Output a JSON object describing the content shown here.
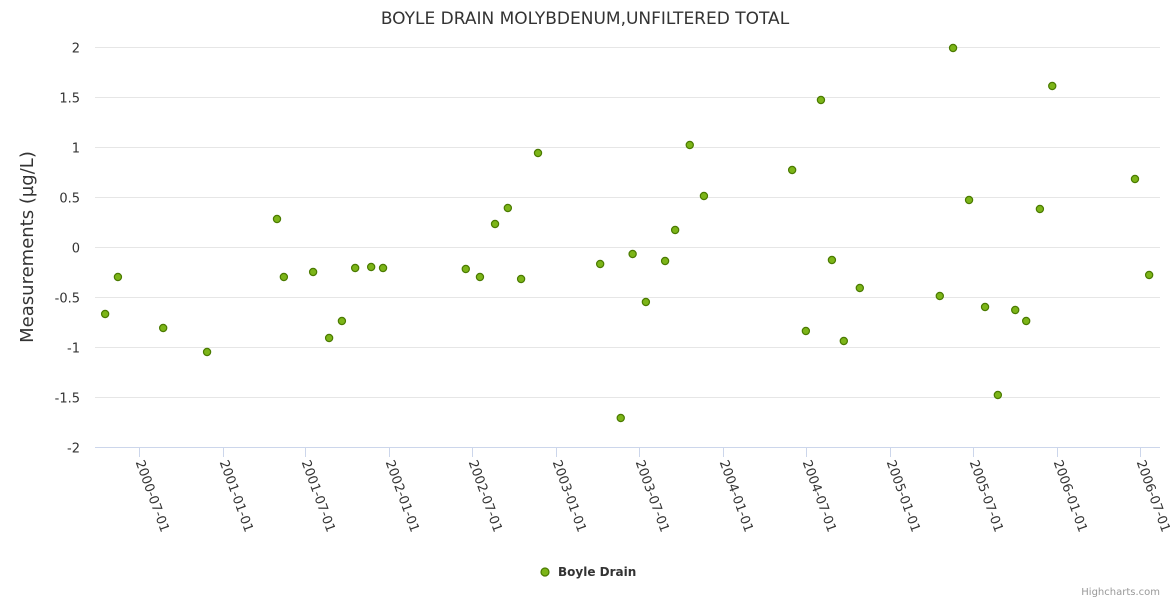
{
  "chart_data": {
    "type": "scatter",
    "title": "BOYLE DRAIN MOLYBDENUM,UNFILTERED TOTAL",
    "xlabel": "",
    "ylabel": "Measurements (µg/L)",
    "ylim": [
      -2,
      2
    ],
    "yticks": [
      "2",
      "1.5",
      "1",
      "0.5",
      "0",
      "-0.5",
      "-1",
      "-1.5",
      "-2"
    ],
    "ytick_values": [
      2,
      1.5,
      1,
      0.5,
      0,
      -0.5,
      -1,
      -1.5,
      -2
    ],
    "xticks": [
      "2000-07-01",
      "2001-01-01",
      "2001-07-01",
      "2002-01-01",
      "2002-07-01",
      "2003-01-01",
      "2003-07-01",
      "2004-01-01",
      "2004-07-01",
      "2005-01-01",
      "2005-07-01",
      "2006-01-01",
      "2006-07-01"
    ],
    "xlim": [
      "2000-03-26",
      "2006-08-15"
    ],
    "grid": true,
    "legend_position": "bottom-center",
    "series": [
      {
        "name": "Boyle Drain",
        "color": "#7cb518",
        "points": [
          [
            "2000-04-19",
            -0.67
          ],
          [
            "2000-05-17",
            -0.3
          ],
          [
            "2000-08-24",
            -0.81
          ],
          [
            "2000-11-28",
            -1.05
          ],
          [
            "2001-04-30",
            0.28
          ],
          [
            "2001-05-15",
            -0.3
          ],
          [
            "2001-07-18",
            -0.25
          ],
          [
            "2001-08-22",
            -0.91
          ],
          [
            "2001-09-19",
            -0.74
          ],
          [
            "2001-10-18",
            -0.21
          ],
          [
            "2001-11-22",
            -0.2
          ],
          [
            "2001-12-18",
            -0.21
          ],
          [
            "2002-06-17",
            -0.22
          ],
          [
            "2002-07-18",
            -0.3
          ],
          [
            "2002-08-20",
            0.23
          ],
          [
            "2002-09-17",
            0.39
          ],
          [
            "2002-10-16",
            -0.32
          ],
          [
            "2002-11-22",
            0.94
          ],
          [
            "2003-04-07",
            -0.17
          ],
          [
            "2003-05-22",
            -1.71
          ],
          [
            "2003-06-17",
            -0.07
          ],
          [
            "2003-07-16",
            -0.55
          ],
          [
            "2003-08-27",
            -0.14
          ],
          [
            "2003-09-18",
            0.17
          ],
          [
            "2003-10-20",
            1.02
          ],
          [
            "2003-11-20",
            0.51
          ],
          [
            "2004-05-31",
            0.77
          ],
          [
            "2004-06-30",
            -0.84
          ],
          [
            "2004-08-02",
            1.47
          ],
          [
            "2004-08-26",
            -0.13
          ],
          [
            "2004-09-21",
            -0.94
          ],
          [
            "2004-10-26",
            -0.41
          ],
          [
            "2005-04-19",
            -0.49
          ],
          [
            "2005-05-18",
            1.99
          ],
          [
            "2005-06-22",
            0.47
          ],
          [
            "2005-07-27",
            -0.6
          ],
          [
            "2005-08-24",
            -1.48
          ],
          [
            "2005-10-01",
            -0.63
          ],
          [
            "2005-10-25",
            -0.74
          ],
          [
            "2005-11-24",
            0.38
          ],
          [
            "2005-12-21",
            1.61
          ],
          [
            "2006-06-20",
            0.68
          ],
          [
            "2006-07-21",
            -0.28
          ]
        ]
      }
    ]
  },
  "credits": "Highcharts.com"
}
